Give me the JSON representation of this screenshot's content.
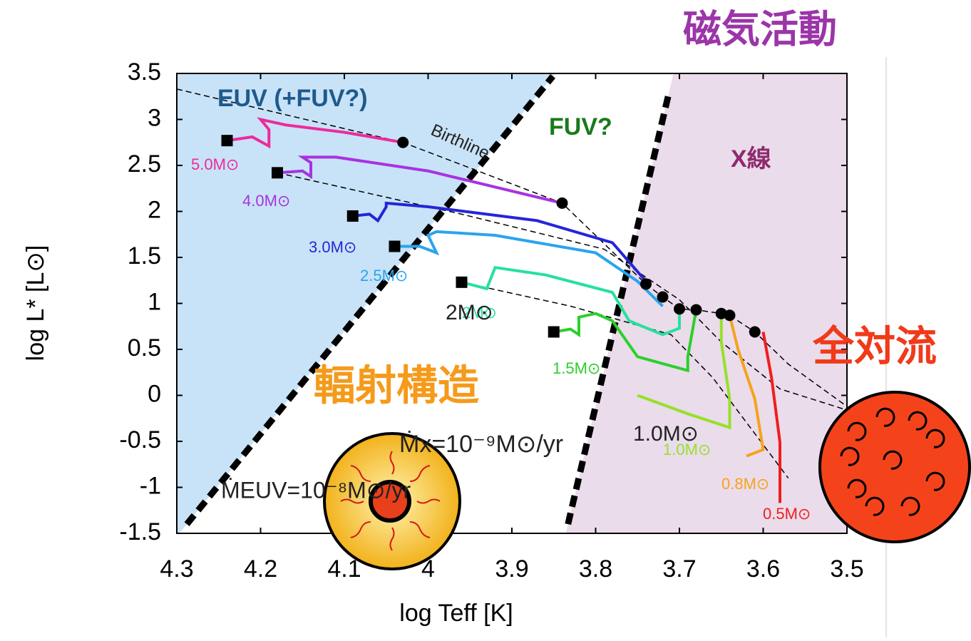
{
  "chart_data": {
    "type": "line",
    "x_label": "log Teff [K]",
    "y_label": "log L* [L⊙]",
    "xlim": [
      4.3,
      3.5
    ],
    "ylim": [
      -1.5,
      3.5
    ],
    "xticks": [
      4.3,
      4.2,
      4.1,
      4,
      3.9,
      3.8,
      3.7,
      3.6,
      3.5
    ],
    "yticks": [
      -1.5,
      -1,
      -0.5,
      0,
      0.5,
      1,
      1.5,
      2,
      2.5,
      3,
      3.5
    ],
    "regions": [
      {
        "color": "#c8e3f7",
        "boundary": {
          "x": [
            4.288,
            3.851
          ],
          "y": [
            -1.4,
            3.47
          ]
        },
        "side": "left"
      },
      {
        "color": "#eadcea",
        "boundary": {
          "x": [
            3.833,
            3.713
          ],
          "y": [
            -1.4,
            3.27
          ]
        },
        "side": "right"
      }
    ],
    "series": [
      {
        "name": "5.0M⊙",
        "color": "#ee2a9c",
        "start_marker": true,
        "x": [
          4.24,
          4.21,
          4.19,
          4.19,
          4.2,
          4.17,
          4.1,
          4.03
        ],
        "y": [
          2.77,
          2.81,
          2.71,
          2.89,
          3.0,
          2.94,
          2.86,
          2.75
        ]
      },
      {
        "name": "4.0M⊙",
        "color": "#a832e0",
        "start_marker": true,
        "x": [
          4.18,
          4.15,
          4.14,
          4.14,
          4.15,
          4.11,
          4.0,
          3.84
        ],
        "y": [
          2.42,
          2.44,
          2.38,
          2.53,
          2.59,
          2.59,
          2.44,
          2.09
        ]
      },
      {
        "name": "3.0M⊙",
        "color": "#2525d8",
        "start_marker": true,
        "x": [
          4.09,
          4.07,
          4.06,
          4.05,
          4.05,
          4.0,
          3.87,
          3.78,
          3.74
        ],
        "y": [
          1.95,
          1.97,
          1.9,
          2.05,
          2.09,
          2.05,
          1.9,
          1.66,
          1.24
        ]
      },
      {
        "name": "2.5M⊙",
        "color": "#2aa4ee",
        "start_marker": true,
        "x": [
          4.04,
          4.01,
          3.99,
          4.0,
          3.99,
          3.92,
          3.8,
          3.75,
          3.72
        ],
        "y": [
          1.62,
          1.62,
          1.55,
          1.74,
          1.78,
          1.74,
          1.55,
          1.24,
          0.97
        ]
      },
      {
        "name": "2M⊙",
        "color": "#27e0a0",
        "start_marker": true,
        "x": [
          3.96,
          3.93,
          3.92,
          3.86,
          3.78,
          3.76,
          3.72,
          3.7,
          3.7
        ],
        "y": [
          1.23,
          1.16,
          1.39,
          1.31,
          1.12,
          0.81,
          0.66,
          0.73,
          0.94
        ]
      },
      {
        "name": "1.5M⊙",
        "color": "#2ad02a",
        "start_marker": true,
        "x": [
          3.85,
          3.83,
          3.82,
          3.82,
          3.8,
          3.78,
          3.75,
          3.69,
          3.69,
          3.68
        ],
        "y": [
          0.69,
          0.72,
          0.66,
          0.85,
          0.89,
          0.81,
          0.42,
          0.27,
          0.42,
          0.93
        ]
      },
      {
        "name": "1.0M⊙",
        "color": "#96e02a",
        "start_marker": false,
        "x": [
          3.75,
          3.69,
          3.64,
          3.64,
          3.65,
          3.65
        ],
        "y": [
          0.0,
          -0.2,
          -0.35,
          -0.04,
          0.58,
          0.89
        ]
      },
      {
        "name": "0.8M⊙",
        "color": "#f7a21c",
        "start_marker": false,
        "x": [
          3.62,
          3.6,
          3.61,
          3.63,
          3.64
        ],
        "y": [
          -0.66,
          -0.59,
          -0.04,
          0.5,
          0.87
        ]
      },
      {
        "name": "0.5M⊙",
        "color": "#f01e1e",
        "start_marker": false,
        "x": [
          3.58,
          3.58,
          3.59,
          3.6
        ],
        "y": [
          -1.17,
          -0.51,
          0.19,
          0.69
        ]
      }
    ],
    "birthline": {
      "name": "Birthline",
      "x": [
        4.3,
        4.03,
        3.84,
        3.74,
        3.72,
        3.7,
        3.68,
        3.65,
        3.64,
        3.61,
        3.57,
        3.5
      ],
      "y": [
        3.33,
        2.75,
        2.09,
        1.21,
        1.07,
        0.94,
        0.93,
        0.89,
        0.87,
        0.69,
        0.34,
        -0.12
      ]
    },
    "birthline_points": {
      "x": [
        4.03,
        3.84,
        3.74,
        3.72,
        3.7,
        3.68,
        3.65,
        3.64,
        3.61
      ],
      "y": [
        2.75,
        2.09,
        1.21,
        1.07,
        0.94,
        0.93,
        0.89,
        0.87,
        0.69
      ]
    },
    "dashed_lines": [
      {
        "x": [
          4.18,
          3.96,
          3.79,
          3.7,
          3.65,
          3.58,
          3.5
        ],
        "y": [
          2.42,
          1.97,
          1.59,
          1.04,
          0.58,
          0.07,
          -0.16
        ]
      },
      {
        "x": [
          3.96,
          3.83,
          3.71,
          3.66,
          3.57
        ],
        "y": [
          1.23,
          0.97,
          0.66,
          0.19,
          -0.9
        ]
      }
    ],
    "annotations": [
      {
        "text": "EUV (+FUV?)",
        "color": "#1f5a8c"
      },
      {
        "text": "FUV?",
        "color": "#1a7a1a"
      },
      {
        "text": "X線",
        "color": "#8e2a6e"
      },
      {
        "text": "磁気活動",
        "color": "#9b35a8"
      },
      {
        "text": "全対流",
        "color": "#f03a1a"
      },
      {
        "text": "輻射構造",
        "color": "#f59a1a"
      },
      {
        "text": "Ṁx=10⁻⁹M⊙/yr",
        "color": "#222222"
      },
      {
        "text": "ṀEUV=10⁻⁸M⊙/yr",
        "color": "#222222"
      },
      {
        "text": "2M⊙",
        "color": "#222222"
      },
      {
        "text": "1.0M⊙",
        "color": "#222222"
      }
    ]
  }
}
